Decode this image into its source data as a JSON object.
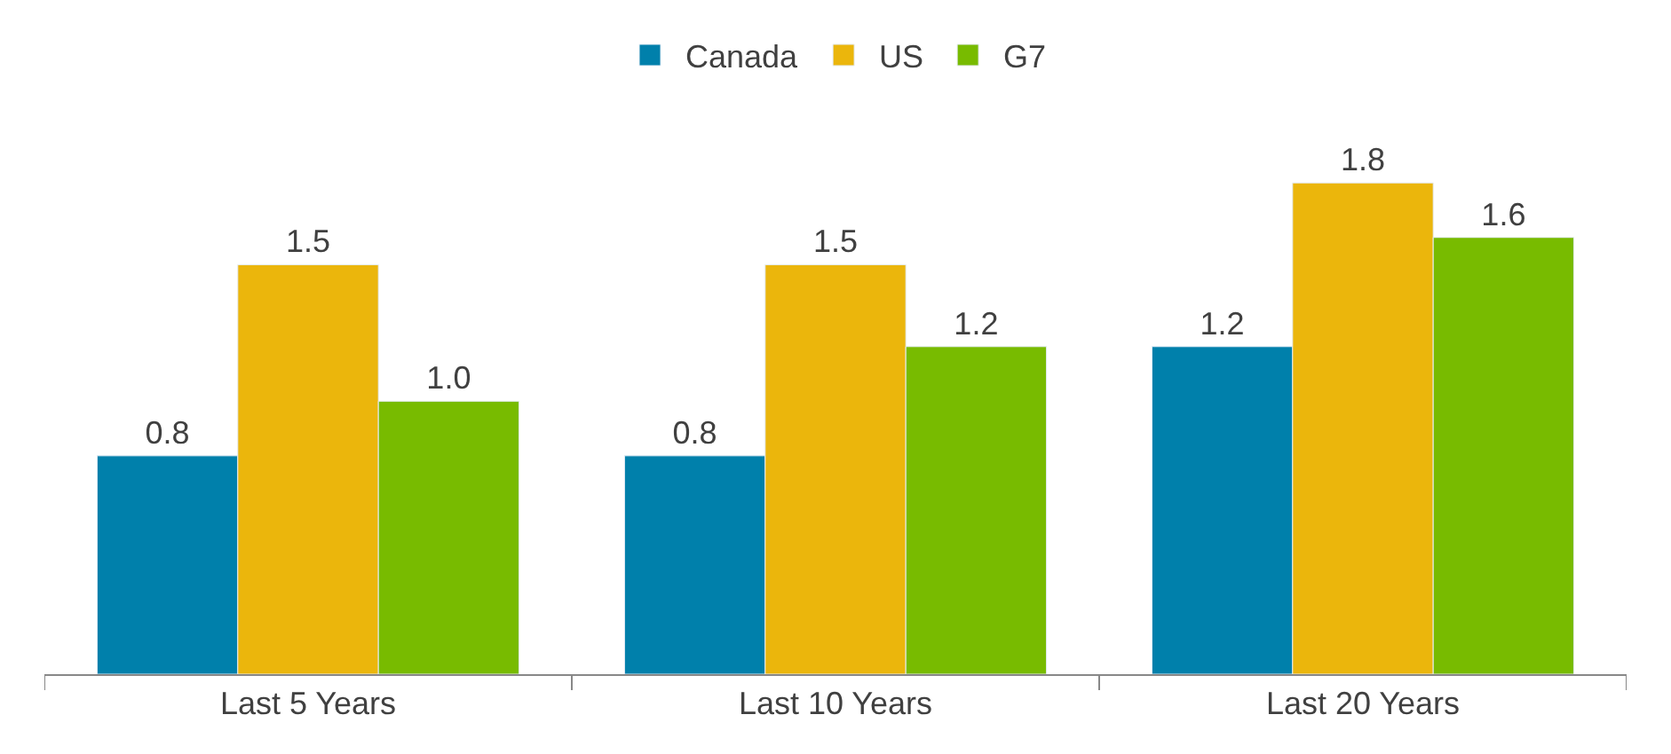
{
  "chart_data": {
    "type": "bar",
    "categories": [
      "Last 5 Years",
      "Last 10 Years",
      "Last 20 Years"
    ],
    "series": [
      {
        "name": "Canada",
        "color": "#0080ab",
        "values": [
          0.8,
          0.8,
          1.2
        ],
        "value_labels": [
          "0.8",
          "0.8",
          "1.2"
        ]
      },
      {
        "name": "US",
        "color": "#ebb60c",
        "values": [
          1.5,
          1.5,
          1.8
        ],
        "value_labels": [
          "1.5",
          "1.5",
          "1.8"
        ]
      },
      {
        "name": "G7",
        "color": "#78bb00",
        "values": [
          1.0,
          1.2,
          1.6
        ],
        "value_labels": [
          "1.0",
          "1.2",
          "1.6"
        ]
      }
    ],
    "legend": "top"
  }
}
